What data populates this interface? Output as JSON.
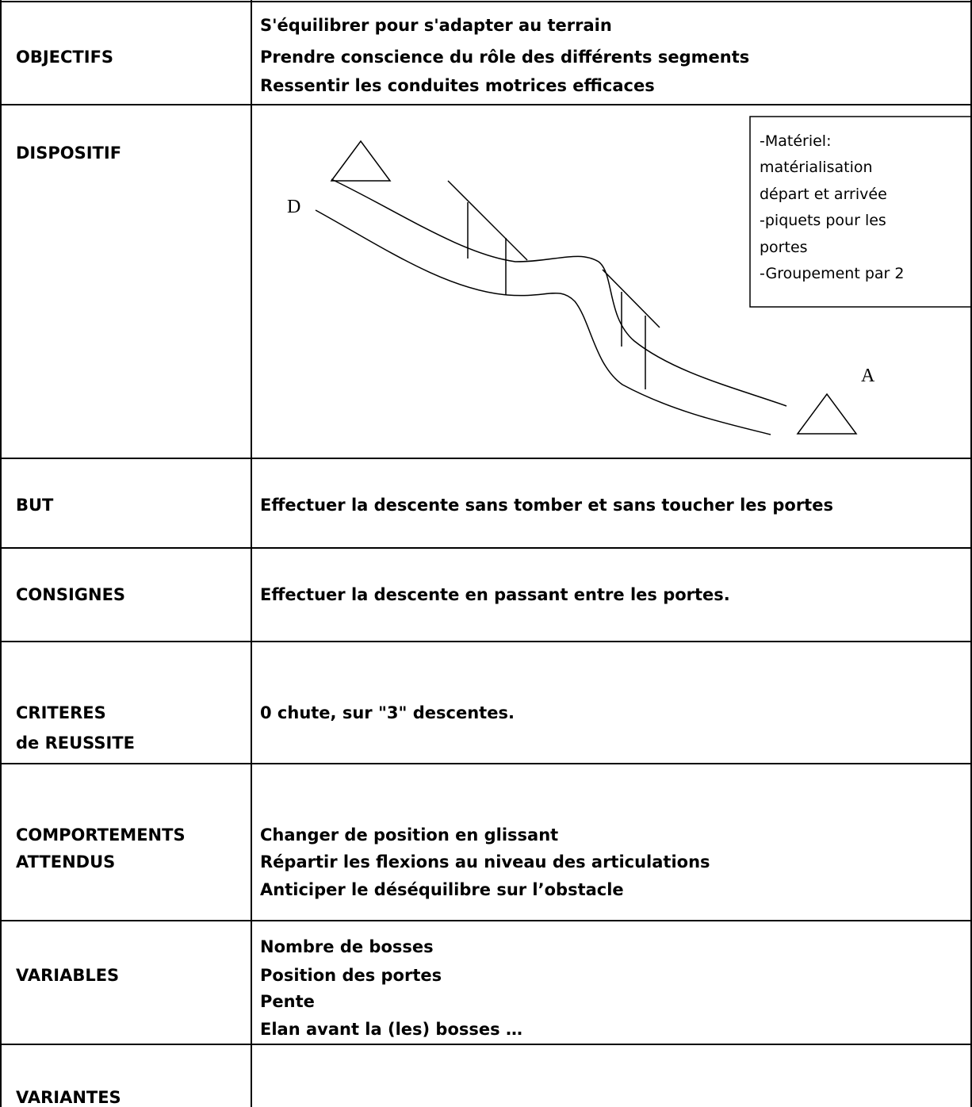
{
  "table": {
    "rows": [
      {
        "label": [
          "OBJECTIFS"
        ],
        "content": [
          "S'équilibrer pour s'adapter au terrain",
          "Prendre conscience du rôle des différents segments",
          "Ressentir les conduites motrices efficaces"
        ]
      },
      {
        "label": [
          "DISPOSITIF"
        ],
        "content": []
      },
      {
        "label": [
          "BUT"
        ],
        "content": [
          "Effectuer la descente sans tomber et sans toucher les portes"
        ]
      },
      {
        "label": [
          "CONSIGNES"
        ],
        "content": [
          "Effectuer la descente en passant entre les portes."
        ]
      },
      {
        "label": [
          "CRITERES",
          "de REUSSITE"
        ],
        "content": [
          "0 chute, sur \"3\" descentes."
        ]
      },
      {
        "label": [
          "COMPORTEMENTS",
          "ATTENDUS"
        ],
        "content": [
          "Changer de position en glissant",
          "Répartir les flexions au niveau des articulations",
          "Anticiper le déséquilibre sur l’obstacle"
        ]
      },
      {
        "label": [
          "VARIABLES"
        ],
        "content": [
          "Nombre de bosses",
          "Position des portes",
          "Pente",
          "Elan avant la (les) bosses …"
        ]
      },
      {
        "label": [
          "VARIANTES"
        ],
        "content": []
      }
    ]
  },
  "diagram": {
    "start": "D",
    "finish": "A",
    "legend": [
      "-Matériel:",
      "matérialisation",
      "départ et arrivée",
      "-piquets pour les",
      "portes",
      "-Groupement par 2"
    ]
  }
}
